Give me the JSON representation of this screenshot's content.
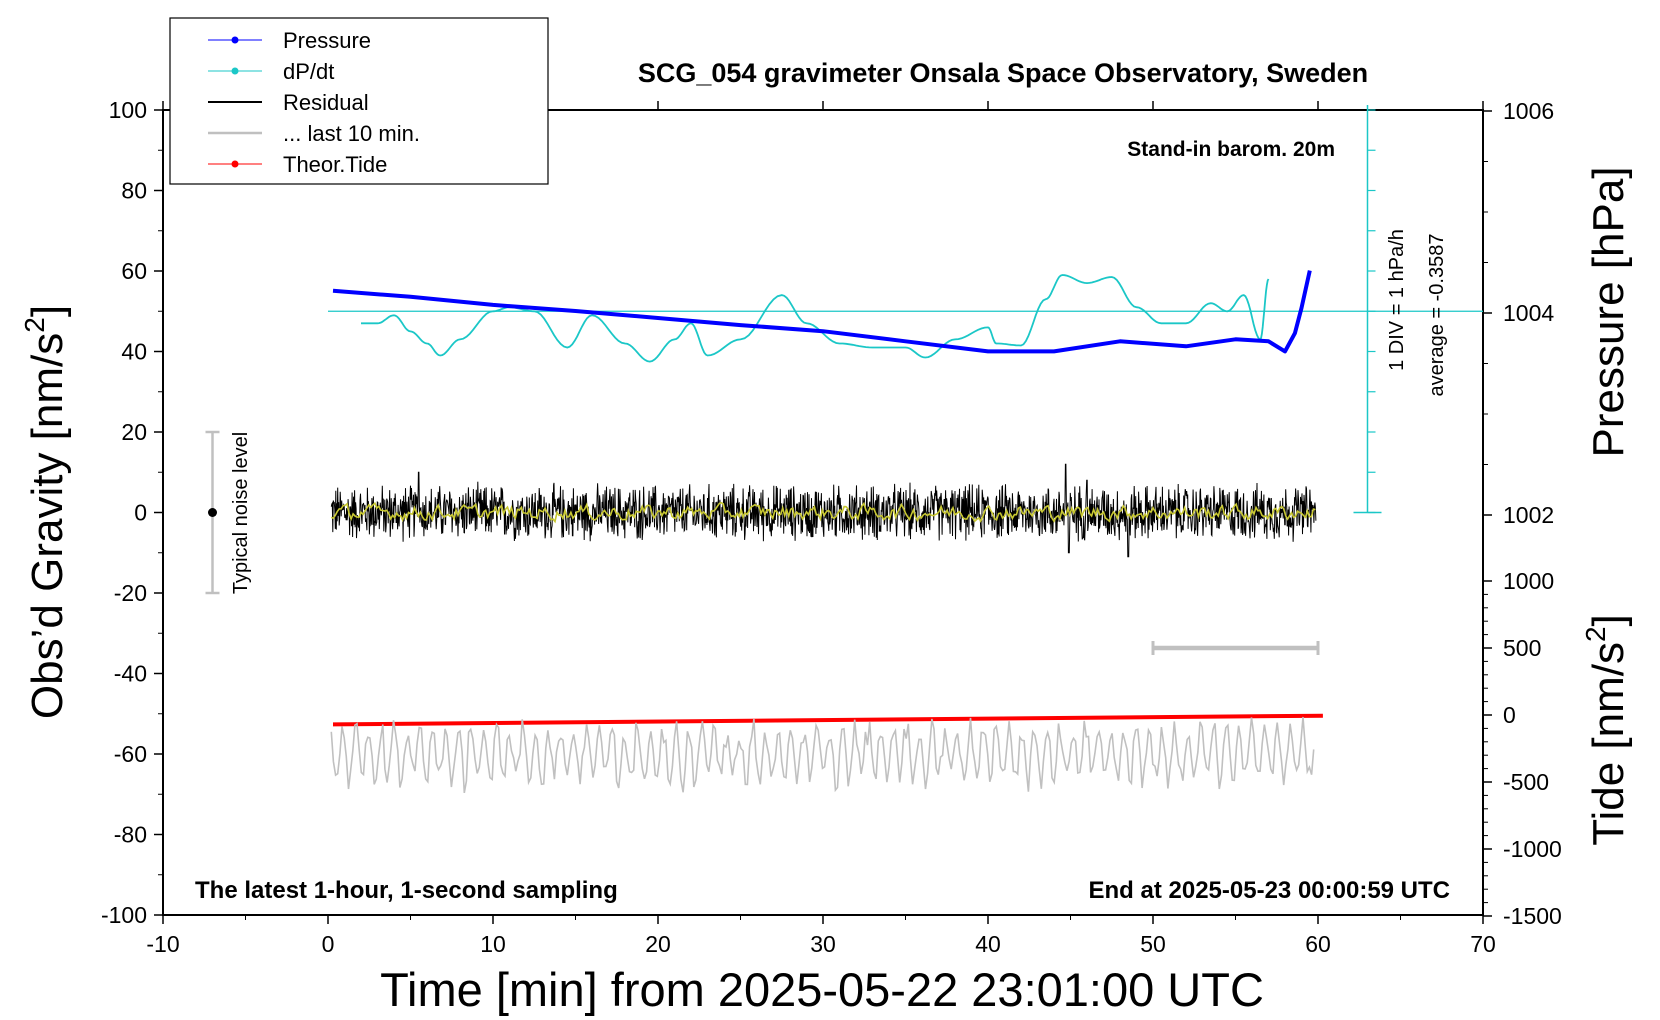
{
  "chart_data": {
    "type": "line",
    "title": "SCG_054 gravimeter Onsala Space Observatory, Sweden",
    "xlabel": "Time [min] from 2025-05-22 23:01:00 UTC",
    "ylabel_left": "Obs’d Gravity [nm/s",
    "ylabel_left_sup": "2",
    "ylabel_left_close": "]",
    "ylabel_pressure": "Pressure [hPa]",
    "ylabel_tide": "Tide [nm/s",
    "ylabel_tide_sup": "2",
    "ylabel_tide_close": "]",
    "xlim": [
      -10,
      70
    ],
    "ylim_left": [
      -100,
      100
    ],
    "pressure_ylim": [
      1000,
      1008
    ],
    "tide_ylim": [
      -1500,
      1500
    ],
    "x_ticks": [
      -10,
      0,
      10,
      20,
      30,
      40,
      50,
      60,
      70
    ],
    "y_ticks_left": [
      100,
      80,
      60,
      40,
      20,
      0,
      -20,
      -40,
      -60,
      -80,
      -100
    ],
    "pressure_ticks": [
      1006,
      1004,
      1002
    ],
    "tide_ticks": [
      1000,
      500,
      0,
      -500,
      -1000,
      -1500
    ],
    "annotations": {
      "barometer": "Stand-in barom. 20m",
      "div": "1 DIV = 1 hPa/h",
      "average": "average = -0.3587",
      "noise": "Typical noise level",
      "latest": "The latest 1-hour, 1-second sampling",
      "end": "End at 2025-05-23 00:00:59 UTC"
    },
    "legend": {
      "position": "top-left",
      "entries": [
        {
          "label": "Pressure",
          "color": "#0000ff"
        },
        {
          "label": "dP/dt",
          "color": "#1bc7c7"
        },
        {
          "label": "Residual",
          "color": "#000000"
        },
        {
          "label": "... last 10 min.",
          "color": "#c0c0c0"
        },
        {
          "label": "Theor.Tide",
          "color": "#ff0000"
        }
      ]
    },
    "series": [
      {
        "name": "Pressure",
        "color": "#0000ff",
        "axis": "pressure",
        "x": [
          0.3,
          5,
          10,
          15,
          20,
          25,
          30,
          35,
          40,
          44,
          48,
          52,
          55,
          57,
          58,
          58.6,
          59,
          59.5
        ],
        "values": [
          1004.22,
          1004.16,
          1004.08,
          1004.02,
          1003.95,
          1003.88,
          1003.82,
          1003.72,
          1003.62,
          1003.62,
          1003.72,
          1003.67,
          1003.74,
          1003.72,
          1003.62,
          1003.8,
          1004.05,
          1004.42
        ]
      },
      {
        "name": "dP/dt",
        "color": "#1bc7c7",
        "axis": "left",
        "x": [
          2,
          3,
          4,
          5,
          6,
          6.8,
          8,
          10,
          11,
          12.5,
          14.5,
          16,
          18,
          19.5,
          21,
          22,
          23,
          25,
          27.5,
          29,
          31,
          33,
          35,
          36.2,
          38,
          40,
          40.5,
          42,
          43.5,
          44.5,
          46,
          47.5,
          49,
          50.5,
          52,
          53.5,
          54.5,
          55.5,
          56.5,
          57
        ],
        "values": [
          47,
          47,
          49,
          45,
          42,
          39,
          43,
          50,
          51,
          50,
          41,
          49,
          42,
          37.5,
          43,
          47,
          39,
          43,
          54,
          47,
          42,
          41,
          41,
          38.5,
          43,
          46,
          42,
          41.5,
          53,
          59,
          57,
          58.5,
          51,
          47,
          47,
          52,
          50,
          54,
          43,
          58
        ]
      },
      {
        "name": "Residual",
        "color": "#000000",
        "axis": "left",
        "x_start": 0.2,
        "x_end": 59.9,
        "amplitude": 8,
        "spikes": [
          [
            5.5,
            10
          ],
          [
            44.7,
            12
          ],
          [
            44.9,
            -10
          ],
          [
            46,
            8
          ],
          [
            48.5,
            -11
          ]
        ]
      },
      {
        "name": "Residual (smoothed)",
        "color": "#c8c832",
        "axis": "left",
        "x_start": 0.2,
        "x_end": 59.9,
        "amplitude": 3
      },
      {
        "name": "Theor.Tide",
        "color": "#ff0000",
        "axis": "tide",
        "x": [
          0.3,
          60.3
        ],
        "values": [
          -70,
          -5
        ]
      },
      {
        "name": "... last 10 min.",
        "color": "#c0c0c0",
        "axis": "left",
        "x_start": 0.2,
        "x_end": 59.8,
        "base": -60,
        "amplitude": 9
      }
    ],
    "noise_bar": {
      "x": -7,
      "low": -20,
      "high": 20,
      "center": 0
    },
    "interval_bar": {
      "x_from": 50,
      "x_to": 60,
      "tide_value": 500
    },
    "dpdt_zero_value": 50,
    "div_axis_x": 63
  }
}
